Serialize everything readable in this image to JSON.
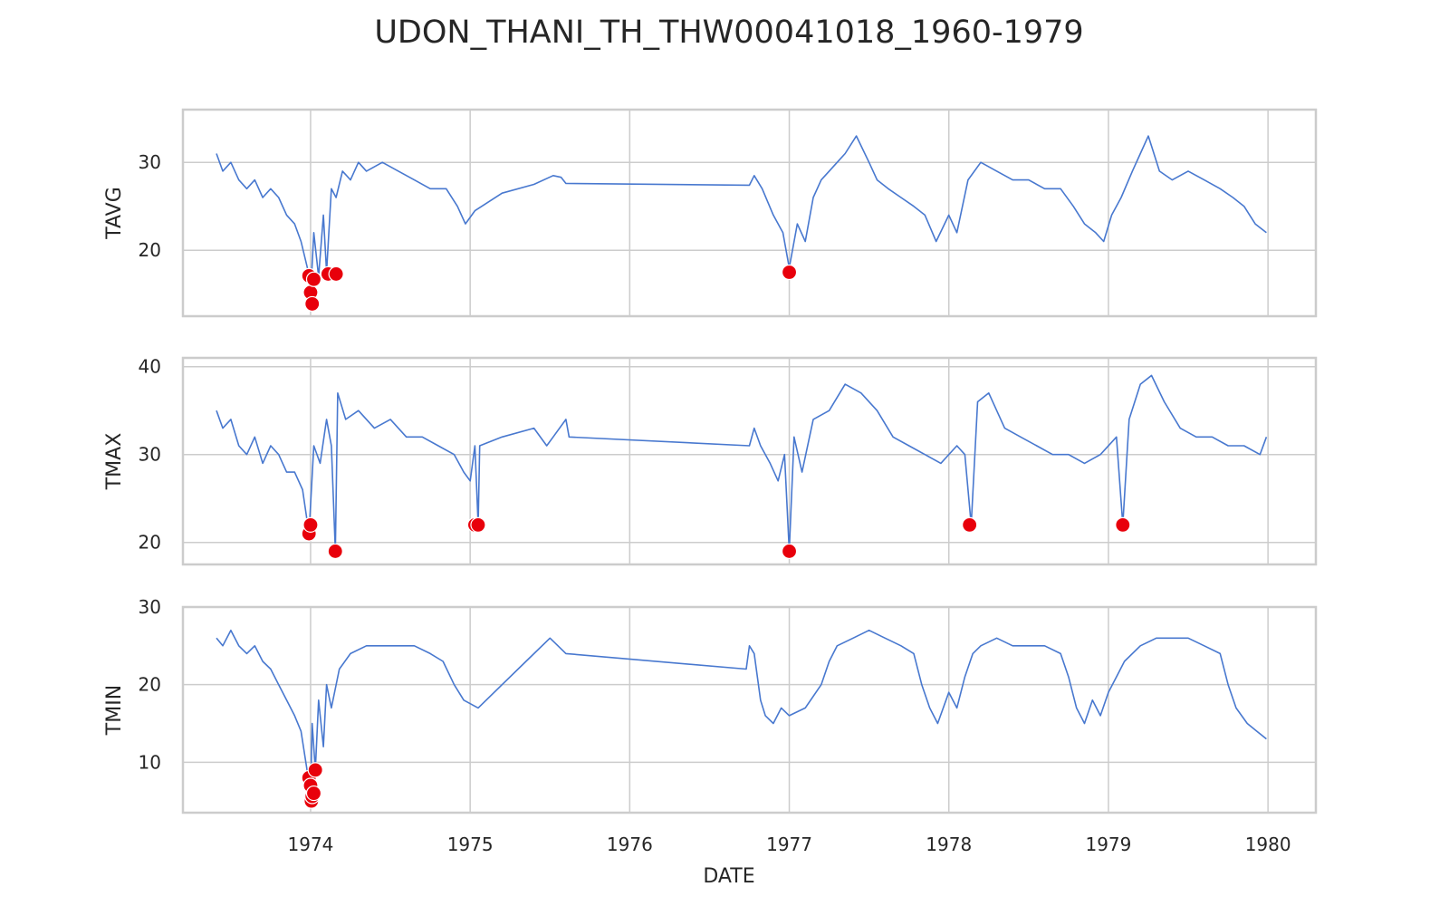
{
  "chart_data": {
    "type": "line",
    "title": "UDON_THANI_TH_THW00041018_1960-1979",
    "xlabel": "DATE",
    "x_range": [
      1973.2,
      1980.3
    ],
    "x_ticks": [
      1974,
      1975,
      1976,
      1977,
      1978,
      1979,
      1980
    ],
    "x_tick_labels": [
      "1974",
      "1975",
      "1976",
      "1977",
      "1978",
      "1979",
      "1980"
    ],
    "grid": true,
    "line_color": "#4878cf",
    "anomaly_color": "#e8000b",
    "panels": [
      {
        "name": "TAVG",
        "ylabel": "TAVG",
        "ylim": [
          12.5,
          36
        ],
        "y_ticks": [
          20,
          30
        ],
        "y_tick_labels": [
          "20",
          "30"
        ],
        "series": {
          "x": [
            1973.41,
            1973.45,
            1973.5,
            1973.55,
            1973.6,
            1973.65,
            1973.7,
            1973.75,
            1973.8,
            1973.85,
            1973.9,
            1973.94,
            1973.98,
            1974.0,
            1974.02,
            1974.05,
            1974.08,
            1974.1,
            1974.13,
            1974.16,
            1974.2,
            1974.25,
            1974.3,
            1974.35,
            1974.45,
            1974.55,
            1974.65,
            1974.75,
            1974.85,
            1974.92,
            1974.97,
            1975.03,
            1975.2,
            1975.4,
            1975.52,
            1975.57,
            1975.6,
            1976.75,
            1976.78,
            1976.83,
            1976.9,
            1976.96,
            1977.0,
            1977.05,
            1977.1,
            1977.15,
            1977.2,
            1977.25,
            1977.3,
            1977.35,
            1977.42,
            1977.5,
            1977.55,
            1977.62,
            1977.7,
            1977.78,
            1977.85,
            1977.92,
            1978.0,
            1978.05,
            1978.12,
            1978.2,
            1978.3,
            1978.4,
            1978.5,
            1978.6,
            1978.7,
            1978.78,
            1978.85,
            1978.92,
            1978.97,
            1979.02,
            1979.08,
            1979.15,
            1979.2,
            1979.25,
            1979.32,
            1979.4,
            1979.5,
            1979.6,
            1979.7,
            1979.78,
            1979.85,
            1979.92,
            1979.99
          ],
          "y": [
            31,
            29,
            30,
            28,
            27,
            28,
            26,
            27,
            26,
            24,
            23,
            21,
            18,
            15,
            22,
            17,
            24,
            17.5,
            27,
            26,
            29,
            28,
            30,
            29,
            30,
            29,
            28,
            27,
            27,
            25,
            23,
            24.5,
            26.5,
            27.5,
            28.5,
            28.3,
            27.6,
            27.4,
            28.5,
            27,
            24,
            22,
            18,
            23,
            21,
            26,
            28,
            29,
            30,
            31,
            33,
            30,
            28,
            27,
            26,
            25,
            24,
            21,
            24,
            22,
            28,
            30,
            29,
            28,
            28,
            27,
            27,
            25,
            23,
            22,
            21,
            24,
            26,
            29,
            31,
            33,
            29,
            28,
            29,
            28,
            27,
            26,
            25,
            23,
            22
          ]
        },
        "anomalies": {
          "x": [
            1973.99,
            1974.0,
            1974.01,
            1974.02,
            1974.11,
            1974.16,
            1977.0
          ],
          "y": [
            17.1,
            15.2,
            13.9,
            16.7,
            17.3,
            17.3,
            17.5
          ]
        }
      },
      {
        "name": "TMAX",
        "ylabel": "TMAX",
        "ylim": [
          17.5,
          41
        ],
        "y_ticks": [
          20,
          30,
          40
        ],
        "y_tick_labels": [
          "20",
          "30",
          "40"
        ],
        "series": {
          "x": [
            1973.41,
            1973.45,
            1973.5,
            1973.55,
            1973.6,
            1973.65,
            1973.7,
            1973.75,
            1973.8,
            1973.85,
            1973.9,
            1973.95,
            1973.99,
            1974.02,
            1974.06,
            1974.1,
            1974.13,
            1974.155,
            1974.17,
            1974.22,
            1974.3,
            1974.4,
            1974.5,
            1974.6,
            1974.7,
            1974.8,
            1974.9,
            1974.96,
            1975.0,
            1975.03,
            1975.05,
            1975.06,
            1975.2,
            1975.4,
            1975.48,
            1975.52,
            1975.6,
            1975.62,
            1976.75,
            1976.78,
            1976.82,
            1976.88,
            1976.93,
            1976.97,
            1977.0,
            1977.03,
            1977.08,
            1977.15,
            1977.25,
            1977.35,
            1977.45,
            1977.55,
            1977.65,
            1977.75,
            1977.85,
            1977.95,
            1978.05,
            1978.1,
            1978.14,
            1978.18,
            1978.25,
            1978.35,
            1978.45,
            1978.55,
            1978.65,
            1978.75,
            1978.85,
            1978.95,
            1979.05,
            1979.09,
            1979.13,
            1979.2,
            1979.27,
            1979.35,
            1979.45,
            1979.55,
            1979.65,
            1979.75,
            1979.85,
            1979.95,
            1979.99
          ],
          "y": [
            35,
            33,
            34,
            31,
            30,
            32,
            29,
            31,
            30,
            28,
            28,
            26,
            21,
            31,
            29,
            34,
            31,
            19,
            37,
            34,
            35,
            33,
            34,
            32,
            32,
            31,
            30,
            28,
            27,
            31,
            22,
            31,
            32,
            33,
            31,
            32,
            34,
            32,
            31,
            33,
            31,
            29,
            27,
            30,
            19,
            32,
            28,
            34,
            35,
            38,
            37,
            35,
            32,
            31,
            30,
            29,
            31,
            30,
            22,
            36,
            37,
            33,
            32,
            31,
            30,
            30,
            29,
            30,
            32,
            22,
            34,
            38,
            39,
            36,
            33,
            32,
            32,
            31,
            31,
            30,
            32
          ]
        },
        "anomalies": {
          "x": [
            1973.99,
            1974.0,
            1974.155,
            1975.03,
            1975.05,
            1977.0,
            1978.13,
            1979.09
          ],
          "y": [
            21.0,
            22.0,
            19.0,
            22.0,
            22.0,
            19.0,
            22.0,
            22.0
          ]
        }
      },
      {
        "name": "TMIN",
        "ylabel": "TMIN",
        "ylim": [
          3.5,
          30
        ],
        "y_ticks": [
          10,
          20,
          30
        ],
        "y_tick_labels": [
          "10",
          "20",
          "30"
        ],
        "series": {
          "x": [
            1973.41,
            1973.45,
            1973.5,
            1973.55,
            1973.6,
            1973.65,
            1973.7,
            1973.75,
            1973.8,
            1973.85,
            1973.9,
            1973.94,
            1973.97,
            1974.0,
            1974.01,
            1974.03,
            1974.05,
            1974.08,
            1974.1,
            1974.13,
            1974.18,
            1974.25,
            1974.35,
            1974.45,
            1974.55,
            1974.65,
            1974.75,
            1974.83,
            1974.9,
            1974.96,
            1975.05,
            1975.2,
            1975.35,
            1975.5,
            1975.55,
            1975.6,
            1976.73,
            1976.75,
            1976.78,
            1976.82,
            1976.85,
            1976.9,
            1976.95,
            1977.0,
            1977.1,
            1977.2,
            1977.25,
            1977.3,
            1977.4,
            1977.5,
            1977.6,
            1977.7,
            1977.78,
            1977.83,
            1977.88,
            1977.93,
            1978.0,
            1978.05,
            1978.1,
            1978.15,
            1978.2,
            1978.3,
            1978.4,
            1978.5,
            1978.6,
            1978.7,
            1978.75,
            1978.8,
            1978.85,
            1978.9,
            1978.95,
            1979.0,
            1979.05,
            1979.1,
            1979.2,
            1979.3,
            1979.4,
            1979.5,
            1979.6,
            1979.7,
            1979.75,
            1979.8,
            1979.87,
            1979.93,
            1979.99
          ],
          "y": [
            26,
            25,
            27,
            25,
            24,
            25,
            23,
            22,
            20,
            18,
            16,
            14,
            10,
            6,
            15,
            9,
            18,
            12,
            20,
            17,
            22,
            24,
            25,
            25,
            25,
            25,
            24,
            23,
            20,
            18,
            17,
            20,
            23,
            26,
            25,
            24,
            22,
            25,
            24,
            18,
            16,
            15,
            17,
            16,
            17,
            20,
            23,
            25,
            26,
            27,
            26,
            25,
            24,
            20,
            17,
            15,
            19,
            17,
            21,
            24,
            25,
            26,
            25,
            25,
            25,
            24,
            21,
            17,
            15,
            18,
            16,
            19,
            21,
            23,
            25,
            26,
            26,
            26,
            25,
            24,
            20,
            17,
            15,
            14,
            13
          ]
        },
        "anomalies": {
          "x": [
            1973.99,
            1974.0,
            1974.005,
            1974.01,
            1974.02,
            1974.03
          ],
          "y": [
            8.0,
            7.0,
            5.0,
            5.6,
            6.0,
            9.0
          ]
        }
      }
    ]
  }
}
